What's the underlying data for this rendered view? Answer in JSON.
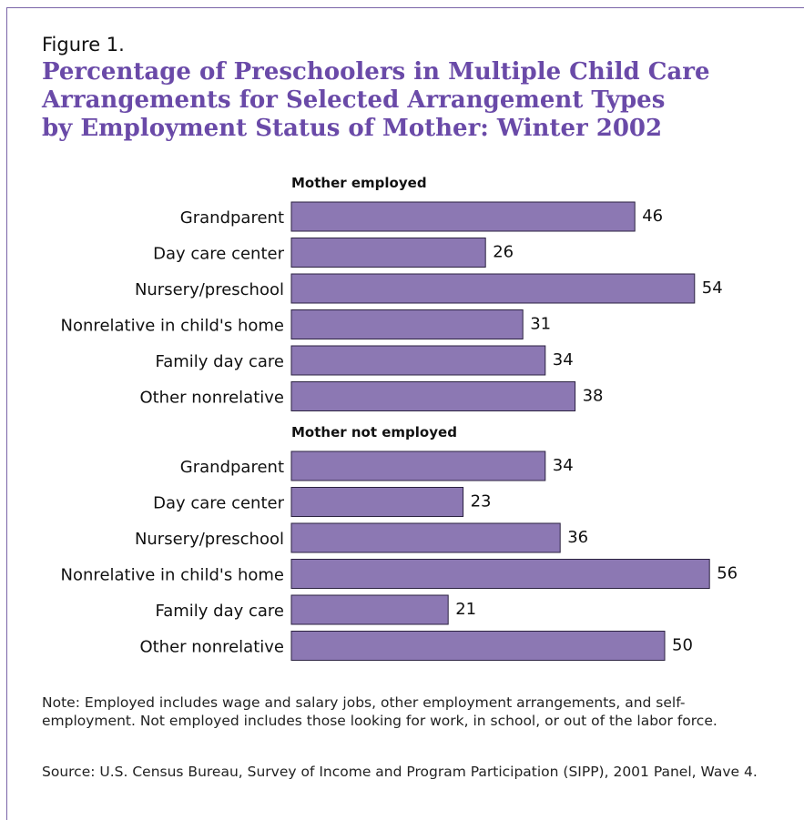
{
  "figure": {
    "label": "Figure 1.",
    "title_lines": [
      "Percentage of Preschoolers in Multiple Child Care",
      "Arrangements for Selected Arrangement Types",
      "by Employment Status of Mother: Winter 2002"
    ],
    "note": "Note: Employed includes wage and salary jobs, other employment arrangements, and self-employment.  Not employed includes those looking for work, in school, or out of the labor force.",
    "source": "Source: U.S. Census Bureau, Survey of Income and Program Participation (SIPP), 2001 Panel, Wave 4."
  },
  "colors": {
    "bar_fill": "#8c78b3",
    "bar_stroke": "#2b2240",
    "title": "#6a4aa8",
    "frame": "#7a64a8"
  },
  "chart_data": {
    "type": "bar",
    "orientation": "horizontal",
    "categories": [
      "Grandparent",
      "Day care center",
      "Nursery/preschool",
      "Nonrelative in child's home",
      "Family day care",
      "Other nonrelative"
    ],
    "series": [
      {
        "name": "Mother employed",
        "values": [
          46,
          26,
          54,
          31,
          34,
          38
        ]
      },
      {
        "name": "Mother not employed",
        "values": [
          34,
          23,
          36,
          56,
          21,
          50
        ]
      }
    ],
    "xlim": [
      0,
      56
    ],
    "data_labels": true,
    "grid": false
  }
}
